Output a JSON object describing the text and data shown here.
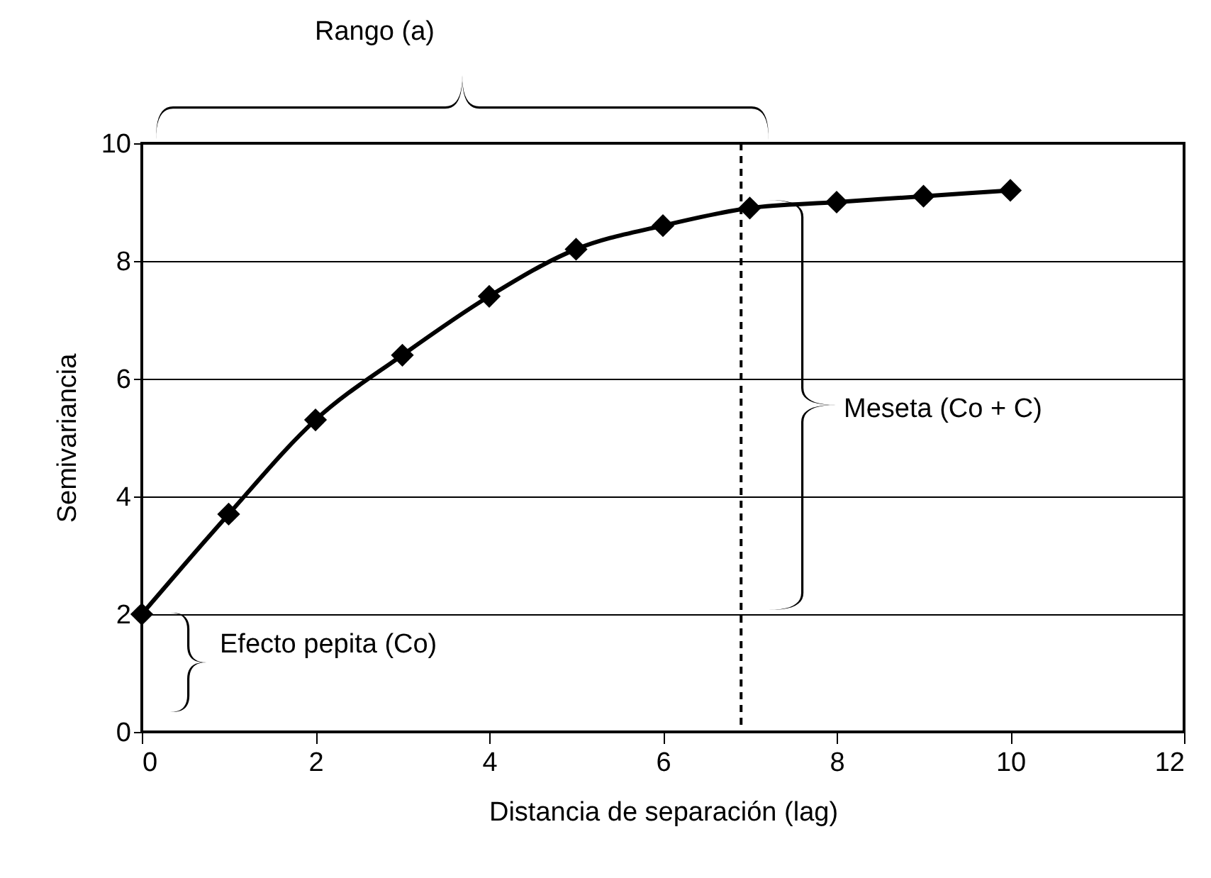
{
  "chart_data": {
    "type": "line",
    "xlabel": "Distancia de separación (lag)",
    "ylabel": "Semivariancia",
    "x": [
      0,
      1,
      2,
      3,
      4,
      5,
      6,
      7,
      8,
      9,
      10
    ],
    "series": [
      {
        "color": "#000000",
        "values": [
          2,
          3.7,
          5.3,
          6.4,
          7.4,
          8.2,
          8.6,
          8.9,
          9.0,
          9.1,
          9.2
        ]
      }
    ],
    "xlim": [
      0,
      12
    ],
    "xticks": [
      0,
      2,
      4,
      6,
      8,
      10,
      12
    ],
    "ylim": [
      0,
      10
    ],
    "yticks": [
      0,
      2,
      4,
      6,
      8,
      10
    ],
    "grid": "y",
    "marker": "diamond",
    "line_style": "solid",
    "ref_lines": [
      {
        "axis": "x",
        "value": 6.9,
        "line_style": "dashed"
      }
    ],
    "annotations": [
      "Rango (a)",
      "Meseta (Co + C)",
      "Efecto pepita (Co)"
    ]
  }
}
